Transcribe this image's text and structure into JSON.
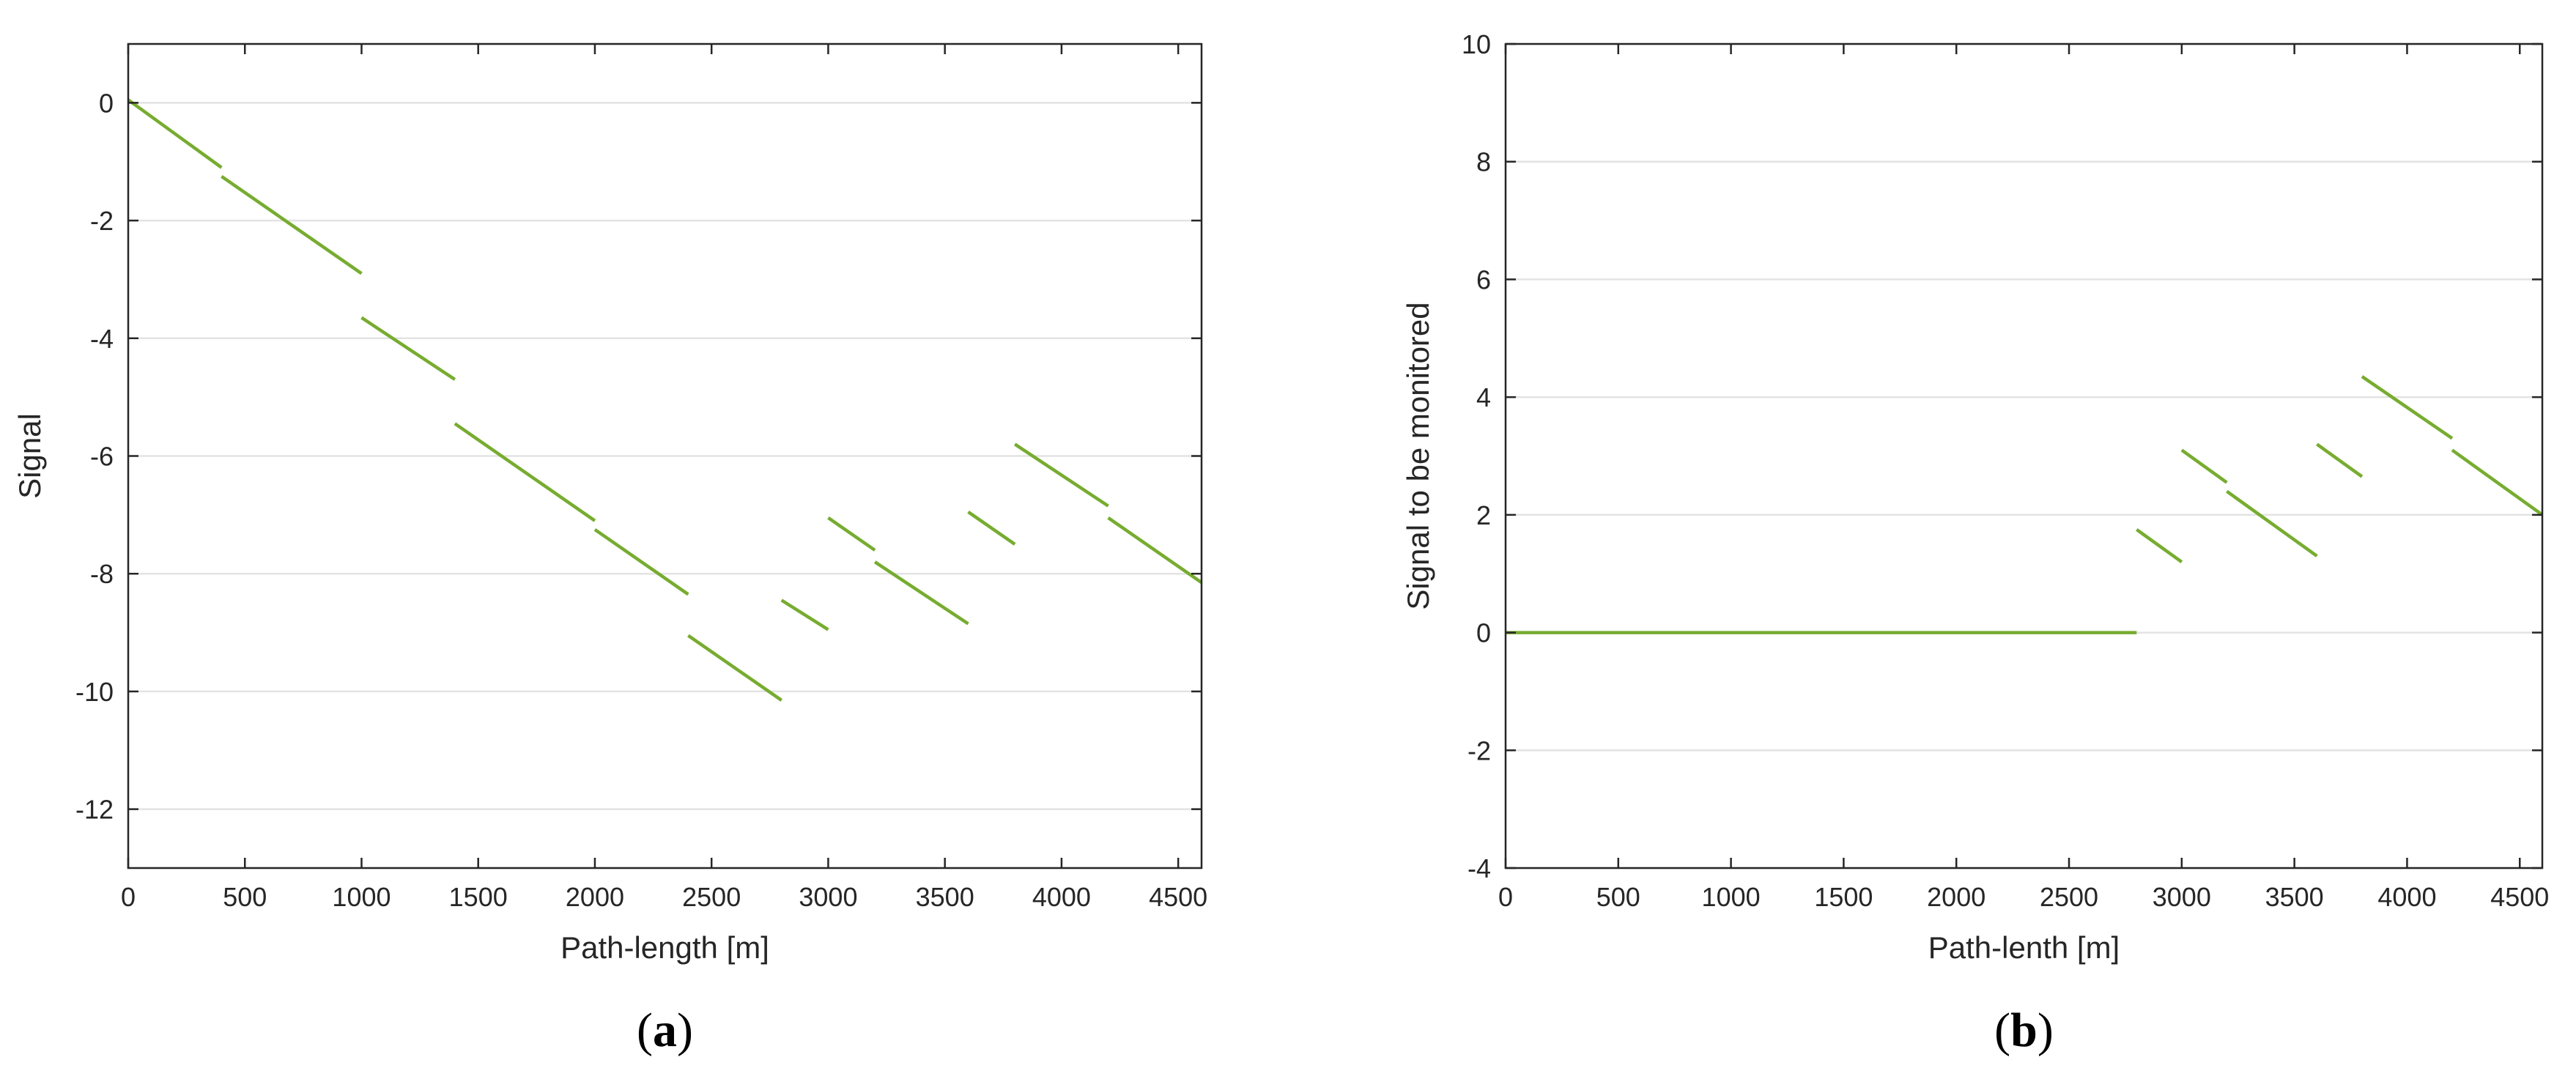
{
  "chart_data": [
    {
      "type": "line",
      "panel_label": "(a)",
      "panel_letter": "a",
      "title": "",
      "xlabel": "Path-length [m]",
      "ylabel": "Signal",
      "xlim": [
        0,
        4600
      ],
      "ylim": [
        -13,
        1
      ],
      "xticks": [
        0,
        500,
        1000,
        1500,
        2000,
        2500,
        3000,
        3500,
        4000,
        4500
      ],
      "yticks": [
        0,
        -2,
        -4,
        -6,
        -8,
        -10,
        -12
      ],
      "grid": "horizontal",
      "line_color": "#77AC30",
      "segments": [
        [
          [
            0,
            0.05
          ],
          [
            400,
            -1.1
          ]
        ],
        [
          [
            400,
            -1.25
          ],
          [
            1000,
            -2.9
          ]
        ],
        [
          [
            1000,
            -3.65
          ],
          [
            1400,
            -4.7
          ]
        ],
        [
          [
            1400,
            -5.45
          ],
          [
            2000,
            -7.1
          ]
        ],
        [
          [
            2000,
            -7.25
          ],
          [
            2400,
            -8.35
          ]
        ],
        [
          [
            2400,
            -9.05
          ],
          [
            2800,
            -10.15
          ]
        ],
        [
          [
            2800,
            -8.45
          ],
          [
            3000,
            -8.95
          ]
        ],
        [
          [
            3000,
            -7.05
          ],
          [
            3200,
            -7.6
          ]
        ],
        [
          [
            3200,
            -7.8
          ],
          [
            3600,
            -8.85
          ]
        ],
        [
          [
            3600,
            -6.95
          ],
          [
            3800,
            -7.5
          ]
        ],
        [
          [
            3800,
            -5.8
          ],
          [
            4200,
            -6.85
          ]
        ],
        [
          [
            4200,
            -7.05
          ],
          [
            4600,
            -8.15
          ]
        ]
      ]
    },
    {
      "type": "line",
      "panel_label": "(b)",
      "panel_letter": "b",
      "title": "",
      "xlabel": "Path-lenth [m]",
      "ylabel": "Signal to be monitored",
      "xlim": [
        0,
        4600
      ],
      "ylim": [
        -4,
        10
      ],
      "xticks": [
        0,
        500,
        1000,
        1500,
        2000,
        2500,
        3000,
        3500,
        4000,
        4500
      ],
      "yticks": [
        10,
        8,
        6,
        4,
        2,
        0,
        -2,
        -4
      ],
      "grid": "horizontal",
      "line_color": "#77AC30",
      "segments": [
        [
          [
            0,
            0
          ],
          [
            2800,
            0
          ]
        ],
        [
          [
            2800,
            1.75
          ],
          [
            3000,
            1.2
          ]
        ],
        [
          [
            3000,
            3.1
          ],
          [
            3200,
            2.55
          ]
        ],
        [
          [
            3200,
            2.4
          ],
          [
            3600,
            1.3
          ]
        ],
        [
          [
            3600,
            3.2
          ],
          [
            3800,
            2.65
          ]
        ],
        [
          [
            3800,
            4.35
          ],
          [
            4200,
            3.3
          ]
        ],
        [
          [
            4200,
            3.1
          ],
          [
            4600,
            2.0
          ]
        ]
      ]
    }
  ]
}
